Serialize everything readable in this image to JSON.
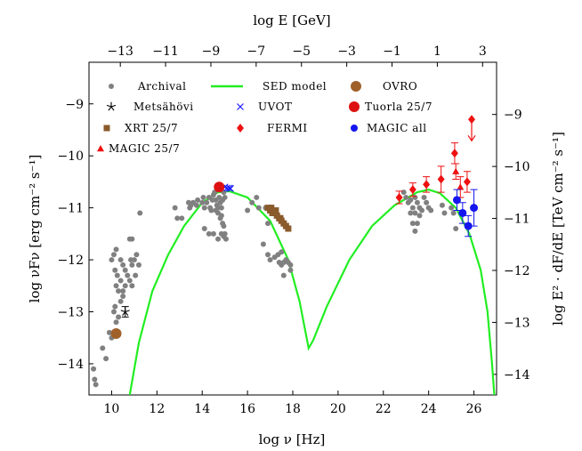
{
  "chart_data": {
    "type": "scatter",
    "axes": {
      "bottom": {
        "label": "log ν [Hz]",
        "range": [
          9,
          27
        ],
        "ticks": [
          10,
          12,
          14,
          16,
          18,
          20,
          22,
          24,
          26
        ]
      },
      "left": {
        "label": "log νFν [erg cm⁻² s⁻¹]",
        "range": [
          -14.6,
          -8.2
        ],
        "ticks": [
          -14,
          -13,
          -12,
          -11,
          -10,
          -9
        ]
      },
      "top": {
        "label": "log E [GeV]",
        "ticks": [
          -13,
          -11,
          -9,
          -7,
          -5,
          -3,
          -1,
          1,
          3
        ],
        "tick_positions_log_nu": [
          10.383,
          12.383,
          14.383,
          16.383,
          18.383,
          20.383,
          22.383,
          24.383,
          26.383
        ]
      },
      "right": {
        "label": "log E² · dF/dE [TeV cm⁻² s⁻¹]",
        "ticks": [
          -9,
          -10,
          -11,
          -12,
          -13,
          -14
        ],
        "tick_positions_log_nuFnu": [
          -9.204,
          -10.204,
          -11.204,
          -12.204,
          -13.204,
          -14.204
        ]
      }
    },
    "grid": false,
    "legend_position": "top, inside plot",
    "colors": {
      "archival": "#808080",
      "sed_model": "#22ee22",
      "ovro": "#a0602a",
      "uvot": "#1a1aff",
      "tuorla": "#dd1111",
      "xrt": "#8a5a2b",
      "fermi": "#ee1111",
      "magic_all": "#1515ee",
      "magic_25": "#ee1111"
    },
    "series": [
      {
        "name": "Archival",
        "marker": "dot",
        "points": [
          [
            9.2,
            -14.1
          ],
          [
            9.25,
            -14.3
          ],
          [
            9.3,
            -14.4
          ],
          [
            9.6,
            -13.7
          ],
          [
            9.75,
            -13.9
          ],
          [
            9.9,
            -13.4
          ],
          [
            10.0,
            -13.5
          ],
          [
            10.1,
            -13.0
          ],
          [
            10.15,
            -12.9
          ],
          [
            10.2,
            -13.2
          ],
          [
            10.3,
            -13.1
          ],
          [
            10.4,
            -12.8
          ],
          [
            10.5,
            -12.7
          ],
          [
            10.2,
            -12.5
          ],
          [
            10.3,
            -12.6
          ],
          [
            10.4,
            -12.4
          ],
          [
            10.5,
            -12.6
          ],
          [
            10.6,
            -12.5
          ],
          [
            10.15,
            -12.2
          ],
          [
            10.25,
            -12.3
          ],
          [
            10.4,
            -12.0
          ],
          [
            10.5,
            -12.1
          ],
          [
            10.6,
            -12.2
          ],
          [
            10.7,
            -12.3
          ],
          [
            10.8,
            -12.4
          ],
          [
            10.9,
            -12.5
          ],
          [
            10.85,
            -12.0
          ],
          [
            10.9,
            -12.1
          ],
          [
            11.0,
            -12.0
          ],
          [
            11.05,
            -12.3
          ],
          [
            11.1,
            -11.9
          ],
          [
            11.2,
            -12.1
          ],
          [
            10.0,
            -12.0
          ],
          [
            10.1,
            -11.9
          ],
          [
            10.2,
            -11.8
          ],
          [
            10.9,
            -11.6
          ],
          [
            10.8,
            -11.6
          ],
          [
            11.25,
            -11.1
          ],
          [
            12.8,
            -11.0
          ],
          [
            12.9,
            -11.2
          ],
          [
            13.1,
            -11.2
          ],
          [
            13.4,
            -10.9
          ],
          [
            13.45,
            -11.0
          ],
          [
            13.5,
            -10.95
          ],
          [
            13.6,
            -10.9
          ],
          [
            13.75,
            -10.95
          ],
          [
            13.8,
            -10.85
          ],
          [
            14.0,
            -10.9
          ],
          [
            14.05,
            -10.8
          ],
          [
            14.1,
            -11.0
          ],
          [
            14.2,
            -10.9
          ],
          [
            14.3,
            -10.8
          ],
          [
            14.35,
            -11.0
          ],
          [
            14.4,
            -11.05
          ],
          [
            14.45,
            -10.85
          ],
          [
            14.5,
            -10.75
          ],
          [
            14.55,
            -10.7
          ],
          [
            14.6,
            -10.85
          ],
          [
            14.65,
            -10.95
          ],
          [
            14.7,
            -11.0
          ],
          [
            14.75,
            -10.8
          ],
          [
            14.8,
            -10.9
          ],
          [
            14.85,
            -11.0
          ],
          [
            14.9,
            -10.85
          ],
          [
            14.95,
            -10.7
          ],
          [
            15.0,
            -10.8
          ],
          [
            14.6,
            -11.05
          ],
          [
            14.7,
            -11.1
          ],
          [
            14.8,
            -11.2
          ],
          [
            14.85,
            -11.15
          ],
          [
            14.9,
            -11.3
          ],
          [
            14.95,
            -11.35
          ],
          [
            14.1,
            -11.4
          ],
          [
            14.3,
            -11.5
          ],
          [
            14.5,
            -11.5
          ],
          [
            14.7,
            -11.6
          ],
          [
            14.85,
            -11.5
          ],
          [
            14.95,
            -11.55
          ],
          [
            15.0,
            -11.5
          ],
          [
            15.05,
            -11.6
          ],
          [
            16.0,
            -11.05
          ],
          [
            16.2,
            -10.9
          ],
          [
            16.4,
            -10.8
          ],
          [
            16.5,
            -11.0
          ],
          [
            16.8,
            -11.0
          ],
          [
            16.9,
            -11.3
          ],
          [
            16.7,
            -11.7
          ],
          [
            16.9,
            -11.9
          ],
          [
            17.0,
            -12.0
          ],
          [
            17.2,
            -11.95
          ],
          [
            17.4,
            -12.05
          ],
          [
            17.5,
            -12.1
          ],
          [
            17.6,
            -12.05
          ],
          [
            17.7,
            -12.0
          ],
          [
            17.8,
            -12.05
          ],
          [
            17.9,
            -12.1
          ],
          [
            17.6,
            -12.3
          ],
          [
            17.9,
            -12.2
          ],
          [
            17.35,
            -11.9
          ],
          [
            17.5,
            -11.85
          ],
          [
            22.9,
            -10.7
          ],
          [
            23.0,
            -10.8
          ],
          [
            23.1,
            -10.9
          ],
          [
            23.2,
            -10.85
          ],
          [
            23.3,
            -11.0
          ],
          [
            23.4,
            -10.8
          ],
          [
            23.5,
            -10.9
          ],
          [
            23.6,
            -11.0
          ],
          [
            23.2,
            -11.1
          ],
          [
            23.4,
            -11.1
          ],
          [
            23.6,
            -11.15
          ],
          [
            23.7,
            -11.05
          ],
          [
            23.8,
            -10.8
          ],
          [
            23.9,
            -10.9
          ],
          [
            24.0,
            -11.0
          ],
          [
            23.3,
            -11.3
          ],
          [
            23.5,
            -11.3
          ],
          [
            24.1,
            -11.05
          ],
          [
            24.6,
            -10.95
          ],
          [
            24.7,
            -11.1
          ],
          [
            25.0,
            -11.0
          ],
          [
            25.1,
            -11.1
          ],
          [
            25.2,
            -11.4
          ],
          [
            23.4,
            -11.45
          ]
        ]
      },
      {
        "name": "Metsähövi",
        "marker": "star",
        "points": [
          [
            10.6,
            -13.0
          ]
        ],
        "errors": [
          [
            0.1
          ]
        ]
      },
      {
        "name": "XRT 25/7",
        "marker": "square",
        "points": [
          [
            16.9,
            -11.0
          ],
          [
            17.0,
            -11.05
          ],
          [
            17.1,
            -11.1
          ],
          [
            17.2,
            -11.1
          ],
          [
            17.3,
            -11.15
          ],
          [
            17.4,
            -11.2
          ],
          [
            17.5,
            -11.25
          ],
          [
            17.6,
            -11.3
          ],
          [
            17.7,
            -11.35
          ],
          [
            17.8,
            -11.4
          ],
          [
            17.05,
            -11.0
          ],
          [
            17.25,
            -11.05
          ],
          [
            17.45,
            -11.2
          ]
        ]
      },
      {
        "name": "MAGIC 25/7",
        "marker": "triangle",
        "points": [
          [
            25.2,
            -10.3
          ],
          [
            25.4,
            -10.6
          ]
        ],
        "errors": [
          [
            0.15
          ],
          [
            0.2
          ]
        ]
      },
      {
        "name": "SED model",
        "marker": "line",
        "points": [
          [
            10.8,
            -14.6
          ],
          [
            11.2,
            -13.6
          ],
          [
            11.8,
            -12.6
          ],
          [
            12.5,
            -11.9
          ],
          [
            13.2,
            -11.35
          ],
          [
            14.0,
            -10.9
          ],
          [
            14.7,
            -10.7
          ],
          [
            15.2,
            -10.68
          ],
          [
            16.0,
            -10.8
          ],
          [
            17.0,
            -11.25
          ],
          [
            17.8,
            -12.0
          ],
          [
            18.3,
            -12.8
          ],
          [
            18.7,
            -13.7
          ],
          [
            18.9,
            -13.55
          ],
          [
            19.5,
            -12.9
          ],
          [
            20.5,
            -12.0
          ],
          [
            21.5,
            -11.35
          ],
          [
            22.5,
            -10.95
          ],
          [
            23.5,
            -10.7
          ],
          [
            24.0,
            -10.65
          ],
          [
            24.5,
            -10.72
          ],
          [
            25.2,
            -11.0
          ],
          [
            25.8,
            -11.5
          ],
          [
            26.3,
            -12.2
          ],
          [
            26.6,
            -13.0
          ],
          [
            26.8,
            -14.0
          ],
          [
            26.9,
            -14.6
          ]
        ]
      },
      {
        "name": "UVOT",
        "marker": "x",
        "points": [
          [
            15.0,
            -10.6
          ],
          [
            15.1,
            -10.62
          ],
          [
            15.2,
            -10.62
          ],
          [
            15.25,
            -10.63
          ]
        ]
      },
      {
        "name": "FERMI",
        "marker": "diamond",
        "points": [
          [
            22.7,
            -10.8
          ],
          [
            23.3,
            -10.65
          ],
          [
            23.9,
            -10.55
          ],
          [
            24.55,
            -10.45
          ],
          [
            25.15,
            -9.95
          ],
          [
            25.7,
            -10.5
          ]
        ],
        "errors": [
          [
            0.12
          ],
          [
            0.13
          ],
          [
            0.15
          ],
          [
            0.25
          ],
          [
            0.2
          ],
          [
            0.2
          ]
        ],
        "upper_limits": [
          [
            25.9,
            -9.3
          ]
        ]
      },
      {
        "name": "OVRO",
        "marker": "dot",
        "points": [
          [
            10.2,
            -13.42
          ]
        ]
      },
      {
        "name": "Tuorla 25/7",
        "marker": "dot",
        "points": [
          [
            14.75,
            -10.6
          ]
        ]
      },
      {
        "name": "MAGIC all",
        "marker": "dot",
        "points": [
          [
            25.25,
            -10.85
          ],
          [
            25.5,
            -11.1
          ],
          [
            25.75,
            -11.35
          ],
          [
            26.0,
            -11.0
          ]
        ],
        "errors": [
          [
            0.2
          ],
          [
            0.2
          ],
          [
            0.2
          ],
          [
            0.35
          ]
        ]
      }
    ]
  }
}
